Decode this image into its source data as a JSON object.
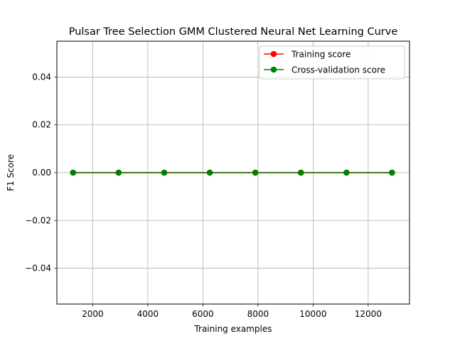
{
  "chart_data": {
    "type": "line",
    "title": "Pulsar Tree Selection GMM Clustered Neural Net Learning Curve",
    "xlabel": "Training examples",
    "ylabel": "F1 Score",
    "xlim": [
      700,
      13500
    ],
    "ylim": [
      -0.055,
      0.055
    ],
    "x_ticks": [
      2000,
      4000,
      6000,
      8000,
      10000,
      12000
    ],
    "x_tick_labels": [
      "2000",
      "4000",
      "6000",
      "8000",
      "10000",
      "12000"
    ],
    "y_ticks": [
      -0.04,
      -0.02,
      0.0,
      0.02,
      0.04
    ],
    "y_tick_labels": [
      "−0.04",
      "−0.02",
      "0.00",
      "0.02",
      "0.04"
    ],
    "grid": true,
    "legend_position": "top-right",
    "x": [
      1288,
      2942,
      4596,
      6250,
      7904,
      9558,
      11212,
      12866
    ],
    "series": [
      {
        "name": "Training score",
        "color": "#ff0000",
        "marker": "circle",
        "values": [
          0,
          0,
          0,
          0,
          0,
          0,
          0,
          0
        ]
      },
      {
        "name": "Cross-validation score",
        "color": "#008000",
        "marker": "circle",
        "values": [
          0,
          0,
          0,
          0,
          0,
          0,
          0,
          0
        ]
      }
    ]
  }
}
